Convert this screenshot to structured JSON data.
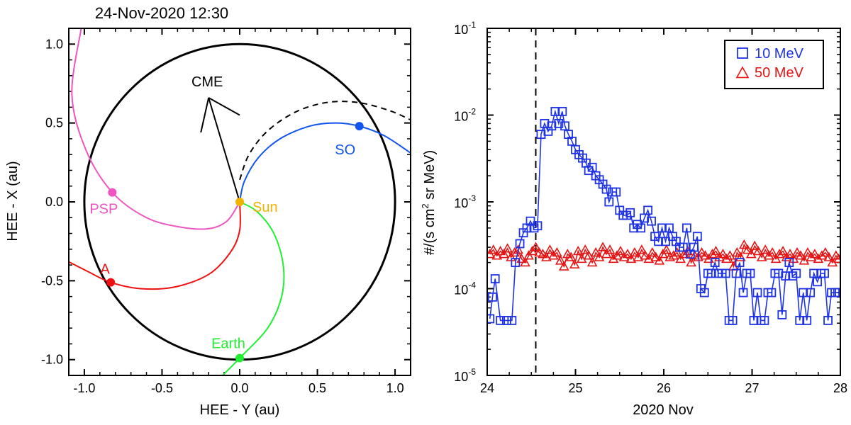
{
  "chart_data": [
    {
      "type": "scatter",
      "title": "24-Nov-2020 12:30",
      "xlabel": "HEE - Y (au)",
      "ylabel": "HEE - X (au)",
      "xlim": [
        -1.1,
        1.1
      ],
      "ylim": [
        -1.1,
        1.1
      ],
      "xticks": [
        -1.0,
        -0.5,
        0.0,
        0.5,
        1.0
      ],
      "xtick_labels": [
        "-1.0",
        "-0.5",
        "0.0",
        "0.5",
        "1.0"
      ],
      "yticks": [
        -1.0,
        -0.5,
        0.0,
        0.5,
        1.0
      ],
      "ytick_labels": [
        "-1.0",
        "-0.5",
        "0.0",
        "0.5",
        "1.0"
      ],
      "orbit_radius_au": 1.0,
      "sun": {
        "label": "Sun",
        "x": 0.0,
        "y": 0.0,
        "color": "#f0b400"
      },
      "bodies": [
        {
          "name": "PSP",
          "x": -0.82,
          "y": 0.06,
          "color": "#ee55c0",
          "spiral_points": [
            [
              0,
              0
            ],
            [
              -0.08,
              -0.12
            ],
            [
              -0.2,
              -0.17
            ],
            [
              -0.38,
              -0.16
            ],
            [
              -0.6,
              -0.1
            ],
            [
              -0.82,
              0.06
            ],
            [
              -0.99,
              0.33
            ],
            [
              -1.08,
              0.68
            ],
            [
              -1.02,
              1.1
            ]
          ]
        },
        {
          "name": "A",
          "x": -0.83,
          "y": -0.51,
          "color": "#ee1111",
          "spiral_points": [
            [
              0,
              0
            ],
            [
              0,
              -0.18
            ],
            [
              -0.06,
              -0.32
            ],
            [
              -0.2,
              -0.46
            ],
            [
              -0.42,
              -0.54
            ],
            [
              -0.64,
              -0.55
            ],
            [
              -0.83,
              -0.51
            ],
            [
              -0.98,
              -0.44
            ],
            [
              -1.1,
              -0.38
            ]
          ]
        },
        {
          "name": "Earth",
          "x": 0.0,
          "y": -0.99,
          "color": "#22ee33",
          "spiral_points": [
            [
              0,
              0
            ],
            [
              0.11,
              -0.06
            ],
            [
              0.22,
              -0.2
            ],
            [
              0.28,
              -0.4
            ],
            [
              0.27,
              -0.6
            ],
            [
              0.18,
              -0.8
            ],
            [
              0.0,
              -0.99
            ],
            [
              -0.13,
              -1.12
            ]
          ]
        },
        {
          "name": "SO",
          "x": 0.77,
          "y": 0.48,
          "color": "#1155ee",
          "spiral_points": [
            [
              0,
              0
            ],
            [
              0.03,
              0.13
            ],
            [
              0.12,
              0.28
            ],
            [
              0.26,
              0.4
            ],
            [
              0.45,
              0.48
            ],
            [
              0.62,
              0.5
            ],
            [
              0.77,
              0.48
            ],
            [
              0.93,
              0.42
            ],
            [
              1.1,
              0.31
            ]
          ]
        }
      ],
      "so_projected_orbit": {
        "style": "dashed",
        "points": [
          [
            0,
            0.14
          ],
          [
            0.06,
            0.3
          ],
          [
            0.18,
            0.45
          ],
          [
            0.36,
            0.57
          ],
          [
            0.56,
            0.63
          ],
          [
            0.76,
            0.63
          ],
          [
            0.96,
            0.58
          ],
          [
            1.1,
            0.52
          ]
        ]
      },
      "cme": {
        "label": "CME",
        "from": [
          0.0,
          0.0
        ],
        "to": [
          -0.2,
          0.66
        ],
        "head_a": [
          -0.25,
          0.44
        ],
        "head_b": [
          0.0,
          0.55
        ]
      },
      "line_colors": {
        "orbit": "#000000",
        "cme": "#000000"
      }
    },
    {
      "type": "line",
      "title": "",
      "xlabel": "2020 Nov",
      "ylabel": "#/(s cm² sr MeV)",
      "ylabel_parts": {
        "prefix": "#/(s cm",
        "sup": "2",
        "suffix": " sr MeV)"
      },
      "xlim": [
        24,
        28
      ],
      "xticks": [
        24,
        25,
        26,
        27,
        28
      ],
      "xtick_labels": [
        "24",
        "25",
        "26",
        "27",
        "28"
      ],
      "yscale": "log",
      "ylim_log10": [
        -5,
        -1
      ],
      "yticks": [
        {
          "base": "10",
          "exp": "-5",
          "log10": -5
        },
        {
          "base": "10",
          "exp": "-4",
          "log10": -4
        },
        {
          "base": "10",
          "exp": "-3",
          "log10": -3
        },
        {
          "base": "10",
          "exp": "-2",
          "log10": -2
        },
        {
          "base": "10",
          "exp": "-1",
          "log10": -1
        }
      ],
      "event_time": 24.55,
      "legend": {
        "placement": "top-right"
      },
      "series": [
        {
          "name": "10 MeV",
          "marker": "square",
          "color": "#1f33e6",
          "x": [
            24.03,
            24.06,
            24.09,
            24.15,
            24.22,
            24.28,
            24.32,
            24.37,
            24.41,
            24.45,
            24.49,
            24.53,
            24.57,
            24.61,
            24.65,
            24.69,
            24.73,
            24.77,
            24.81,
            24.85,
            24.88,
            24.92,
            24.96,
            25.0,
            25.04,
            25.08,
            25.12,
            25.15,
            25.19,
            25.23,
            25.27,
            25.31,
            25.35,
            25.38,
            25.42,
            25.46,
            25.5,
            25.54,
            25.58,
            25.62,
            25.66,
            25.7,
            25.74,
            25.78,
            25.82,
            25.86,
            25.9,
            25.94,
            25.98,
            26.02,
            26.06,
            26.1,
            26.14,
            26.18,
            26.22,
            26.26,
            26.3,
            26.34,
            26.38,
            26.42,
            26.46,
            26.5,
            26.54,
            26.58,
            26.62,
            26.66,
            26.7,
            26.74,
            26.78,
            26.82,
            26.86,
            26.9,
            26.94,
            26.98,
            27.02,
            27.06,
            27.1,
            27.14,
            27.18,
            27.22,
            27.26,
            27.3,
            27.34,
            27.38,
            27.42,
            27.46,
            27.5,
            27.54,
            27.58,
            27.62,
            27.66,
            27.7,
            27.74,
            27.78,
            27.82,
            27.86,
            27.9,
            27.94,
            27.97
          ],
          "values": [
            4.5e-05,
            8e-05,
            0.00013,
            4.3e-05,
            4.3e-05,
            4.3e-05,
            0.0002,
            0.00033,
            0.00044,
            0.0005,
            0.0006,
            0.0005,
            0.00053,
            0.006,
            0.008,
            0.0065,
            0.0075,
            0.011,
            0.008,
            0.011,
            0.0075,
            0.006,
            0.005,
            0.004,
            0.0035,
            0.0032,
            0.0028,
            0.0023,
            0.0025,
            0.002,
            0.0018,
            0.0016,
            0.0014,
            0.001,
            0.0013,
            0.0013,
            0.0008,
            0.0007,
            0.0007,
            0.00075,
            0.0005,
            0.00055,
            0.0005,
            0.00065,
            0.0008,
            0.0006,
            0.0004,
            0.00035,
            0.0005,
            0.00035,
            0.0005,
            0.0004,
            0.00035,
            0.0003,
            0.0003,
            0.0005,
            0.00025,
            0.0003,
            0.0004,
            0.0001,
            9e-05,
            0.00015,
            0.00015,
            0.0002,
            0.00015,
            0.00015,
            0.00015,
            4.3e-05,
            4.3e-05,
            0.00015,
            0.0002,
            9e-05,
            0.00015,
            0.00015,
            4.3e-05,
            9e-05,
            4.3e-05,
            4.3e-05,
            9e-05,
            9e-05,
            0.00015,
            0.00015,
            5e-05,
            0.00014,
            0.0002,
            0.00014,
            0.00015,
            4.3e-05,
            9e-05,
            4.3e-05,
            9e-05,
            0.00015,
            0.00012,
            0.00015,
            0.00015,
            4.3e-05,
            9e-05,
            9e-05,
            9e-05
          ]
        },
        {
          "name": "50 MeV",
          "marker": "triangle",
          "color": "#e61414",
          "x": [
            24.03,
            24.07,
            24.11,
            24.15,
            24.19,
            24.23,
            24.27,
            24.31,
            24.35,
            24.39,
            24.43,
            24.47,
            24.51,
            24.55,
            24.59,
            24.63,
            24.67,
            24.71,
            24.75,
            24.79,
            24.83,
            24.87,
            24.91,
            24.95,
            24.99,
            25.03,
            25.07,
            25.11,
            25.15,
            25.19,
            25.23,
            25.27,
            25.31,
            25.35,
            25.39,
            25.43,
            25.47,
            25.51,
            25.55,
            25.59,
            25.63,
            25.67,
            25.71,
            25.75,
            25.79,
            25.83,
            25.87,
            25.91,
            25.95,
            25.99,
            26.03,
            26.07,
            26.11,
            26.15,
            26.19,
            26.23,
            26.27,
            26.31,
            26.35,
            26.39,
            26.43,
            26.47,
            26.51,
            26.55,
            26.59,
            26.63,
            26.67,
            26.71,
            26.75,
            26.79,
            26.83,
            26.87,
            26.91,
            26.95,
            26.99,
            27.03,
            27.07,
            27.11,
            27.15,
            27.19,
            27.23,
            27.27,
            27.31,
            27.35,
            27.39,
            27.43,
            27.47,
            27.51,
            27.55,
            27.59,
            27.63,
            27.67,
            27.71,
            27.75,
            27.79,
            27.83,
            27.87,
            27.91,
            27.95,
            27.98
          ],
          "values": [
            0.00025,
            0.00028,
            0.00024,
            0.00027,
            0.00025,
            0.00029,
            0.00023,
            0.00026,
            0.00028,
            0.00022,
            0.0002,
            0.00024,
            0.00027,
            0.0003,
            0.00026,
            0.00025,
            0.00023,
            0.00028,
            0.00024,
            0.00026,
            0.00021,
            0.00018,
            0.00025,
            0.00023,
            0.00019,
            0.00027,
            0.00022,
            0.00028,
            0.00024,
            0.0002,
            0.00026,
            0.00023,
            0.0003,
            0.00025,
            0.00028,
            0.00022,
            0.00024,
            0.00027,
            0.00023,
            0.00025,
            0.00022,
            0.00026,
            0.00023,
            0.00028,
            0.00024,
            0.00022,
            0.00026,
            0.00023,
            0.00021,
            0.00025,
            0.00028,
            0.00023,
            0.00024,
            0.00026,
            0.00022,
            0.00025,
            0.00027,
            0.0002,
            0.00024,
            0.00023,
            0.00026,
            0.00024,
            0.00022,
            0.00025,
            0.00027,
            0.00023,
            0.00025,
            0.00022,
            0.00024,
            0.00018,
            0.00026,
            0.00023,
            0.00032,
            0.00028,
            0.00025,
            0.00031,
            0.00027,
            0.00023,
            0.00028,
            0.00024,
            0.00026,
            0.00022,
            0.00025,
            0.00027,
            0.00023,
            0.00025,
            0.00022,
            0.00026,
            0.00024,
            0.00021,
            0.00026,
            0.00023,
            0.00025,
            0.00022,
            0.00024,
            0.00026,
            0.00023,
            0.0002,
            0.00024,
            0.00022
          ]
        }
      ]
    }
  ]
}
